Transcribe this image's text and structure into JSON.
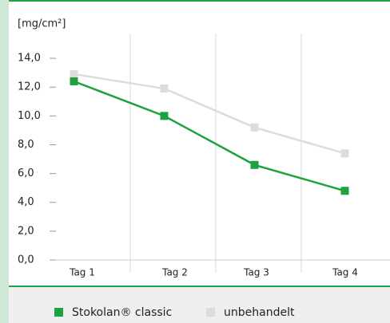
{
  "chart_data": {
    "type": "line",
    "y_label": "[mg/cm²]",
    "categories": [
      "Tag 1",
      "Tag 2",
      "Tag 3",
      "Tag 4"
    ],
    "series": [
      {
        "name": "Stokolan® classic",
        "color": "#1ea23f",
        "values": [
          12.4,
          10.0,
          6.6,
          4.8
        ]
      },
      {
        "name": "unbehandelt",
        "color": "#dcdcdc",
        "values": [
          12.9,
          11.9,
          9.2,
          7.4
        ]
      }
    ],
    "ylim": [
      0,
      15.5
    ],
    "yticks": [
      {
        "value": 0,
        "label": "0,0"
      },
      {
        "value": 2,
        "label": "2,0"
      },
      {
        "value": 4,
        "label": "4,0"
      },
      {
        "value": 6,
        "label": "6,0"
      },
      {
        "value": 8,
        "label": "8,0"
      },
      {
        "value": 10,
        "label": "10,0"
      },
      {
        "value": 12,
        "label": "12,0"
      },
      {
        "value": 14,
        "label": "14,0"
      }
    ],
    "grid": true
  }
}
